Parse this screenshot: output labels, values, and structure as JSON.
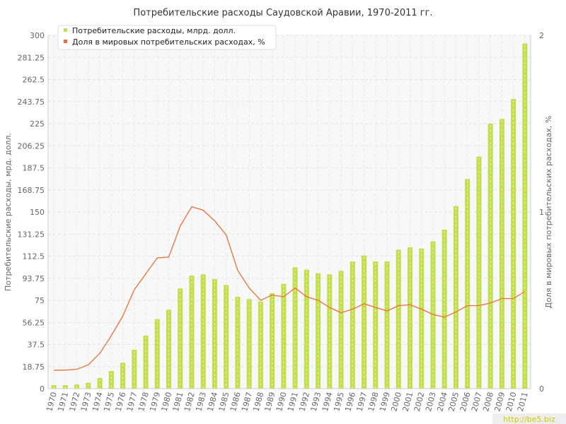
{
  "chart_data": {
    "type": "bar+line",
    "title": "Потребительские расходы Саудовской Аравии, 1970-2011 гг.",
    "ylabel_left": "Потребительские расходы, мрд. долл.",
    "ylabel_right": "Доля в мировых потребительских расходах, %",
    "yticks_left": [
      "0",
      "18.75",
      "37.5",
      "56.25",
      "75",
      "93.75",
      "112.5",
      "131.25",
      "150",
      "168.75",
      "187.5",
      "206.25",
      "225",
      "243.75",
      "262.5",
      "281.25",
      "300"
    ],
    "yticks_right": [
      "0",
      "1",
      "2"
    ],
    "ylim_left": [
      0,
      300
    ],
    "ylim_right": [
      0,
      2
    ],
    "categories": [
      "1970",
      "1971",
      "1972",
      "1973",
      "1974",
      "1975",
      "1976",
      "1977",
      "1978",
      "1979",
      "1980",
      "1981",
      "1982",
      "1983",
      "1984",
      "1985",
      "1986",
      "1987",
      "1988",
      "1989",
      "1990",
      "1991",
      "1992",
      "1993",
      "1994",
      "1995",
      "1996",
      "1997",
      "1998",
      "1999",
      "2000",
      "2001",
      "2002",
      "2003",
      "2004",
      "2005",
      "2006",
      "2007",
      "2008",
      "2009",
      "2010",
      "2011"
    ],
    "grid": true,
    "legend_position": "top-left",
    "series": [
      {
        "name": "Потребительские расходы, млрд. долл.",
        "type": "bar",
        "axis": "left",
        "color": "#c3de4a",
        "values": [
          3,
          3,
          3.5,
          5,
          9,
          15,
          22,
          33,
          45,
          59,
          67,
          85,
          96,
          97,
          93,
          88,
          78,
          76,
          74,
          81,
          89,
          103,
          101,
          98,
          97,
          100,
          108,
          113,
          108,
          108,
          118,
          120,
          119,
          125,
          135,
          155,
          178,
          197,
          225,
          229,
          246,
          293
        ]
      },
      {
        "name": "Доля в мировых потребительских расходах, %",
        "type": "line",
        "axis": "right",
        "color": "#e8703a",
        "values": [
          0.105,
          0.105,
          0.11,
          0.135,
          0.2,
          0.3,
          0.41,
          0.56,
          0.65,
          0.74,
          0.745,
          0.92,
          1.03,
          1.01,
          0.95,
          0.87,
          0.67,
          0.57,
          0.5,
          0.53,
          0.52,
          0.57,
          0.52,
          0.5,
          0.46,
          0.43,
          0.45,
          0.48,
          0.46,
          0.44,
          0.47,
          0.475,
          0.45,
          0.42,
          0.405,
          0.435,
          0.47,
          0.47,
          0.485,
          0.51,
          0.51,
          0.55
        ]
      }
    ]
  },
  "watermark": "http://be5.biz"
}
